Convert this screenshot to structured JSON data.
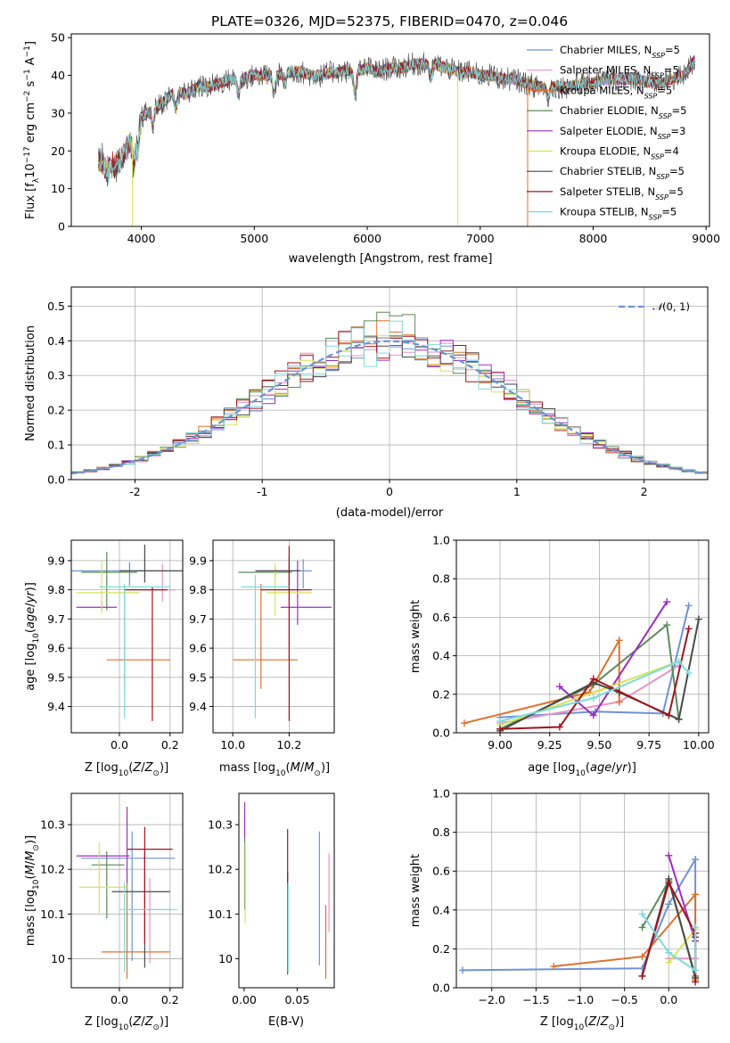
{
  "figure_title": "PLATE=0326, MJD=52375, FIBERID=0470, z=0.046",
  "colors": {
    "Chabrier MILES": "#6f92d6",
    "Salpeter MILES": "#e694c6",
    "Kroupa MILES": "#e0702a",
    "Chabrier ELODIE": "#5b8a5a",
    "Salpeter ELODIE": "#9b2ec0",
    "Kroupa ELODIE": "#d5e35b",
    "Chabrier STELIB": "#4a4a4a",
    "Salpeter STELIB": "#a0151c",
    "Kroupa STELIB": "#7fdada"
  },
  "chart_data": [
    {
      "id": "spectrum",
      "type": "line",
      "title": "PLATE=0326, MJD=52375, FIBERID=0470, z=0.046",
      "xlabel": "wavelength [Angstrom, rest frame]",
      "ylabel": "Flux [f_λ 10^-17 erg cm^-2 s^-1 A^-1]",
      "xlim": [
        3380,
        9030
      ],
      "ylim": [
        0,
        51
      ],
      "xticks": [
        4000,
        5000,
        6000,
        7000,
        8000,
        9000
      ],
      "yticks": [
        0,
        10,
        20,
        30,
        40,
        50
      ],
      "legend_position": "upper-right",
      "legend": [
        {
          "name": "Chabrier MILES",
          "nssp": "5"
        },
        {
          "name": "Salpeter MILES",
          "nssp": "5"
        },
        {
          "name": "Kroupa MILES",
          "nssp": "5"
        },
        {
          "name": "Chabrier ELODIE",
          "nssp": "5"
        },
        {
          "name": "Salpeter ELODIE",
          "nssp": "3"
        },
        {
          "name": "Kroupa ELODIE",
          "nssp": "4"
        },
        {
          "name": "Chabrier STELIB",
          "nssp": "5"
        },
        {
          "name": "Salpeter STELIB",
          "nssp": "5"
        },
        {
          "name": "Kroupa STELIB",
          "nssp": "5"
        }
      ],
      "continuum": {
        "x": [
          3620,
          3700,
          3800,
          3900,
          4000,
          4100,
          4200,
          4300,
          4400,
          4500,
          4600,
          4700,
          4800,
          4900,
          5000,
          5100,
          5200,
          5300,
          5400,
          5500,
          5600,
          5700,
          5800,
          5900,
          6000,
          6100,
          6200,
          6300,
          6400,
          6500,
          6600,
          6700,
          6800,
          6900,
          7000,
          7100,
          7200,
          7300,
          7400,
          7500,
          7600,
          7700,
          7800,
          7900,
          8000,
          8100,
          8200,
          8300,
          8400,
          8500,
          8600,
          8700,
          8800,
          8900
        ],
        "y": [
          18,
          15,
          17,
          22,
          29,
          31,
          33,
          36,
          35,
          37,
          37,
          38,
          39,
          39,
          40,
          40,
          40,
          41,
          41,
          40,
          40,
          41,
          41,
          41,
          42,
          41,
          42,
          42,
          43,
          43,
          43,
          42,
          41,
          41,
          40,
          40,
          39,
          39,
          38,
          37,
          37,
          37,
          37,
          38,
          38,
          39,
          39,
          39,
          39,
          38,
          38,
          39,
          40,
          44
        ]
      },
      "model_drops": [
        {
          "series": "Kroupa ELODIE",
          "x": 3920
        },
        {
          "series": "Kroupa ELODIE",
          "x": 6800
        },
        {
          "series": "Kroupa MILES",
          "x": 7420
        }
      ]
    },
    {
      "id": "residuals",
      "type": "histogram",
      "xlabel": "(data-model)/error",
      "ylabel": "Normed distribution",
      "xlim": [
        -2.5,
        2.5
      ],
      "ylim": [
        0,
        0.555
      ],
      "xticks": [
        -2,
        -1,
        0,
        1,
        2
      ],
      "yticks": [
        0.0,
        0.1,
        0.2,
        0.3,
        0.4,
        0.5
      ],
      "bin_width": 0.1,
      "curve_label": "N(0,1)",
      "curve_label_parts": {
        "script": "𝒩",
        "args": "(0, 1)"
      },
      "curve_color": "#6f92d6",
      "legend_position": "upper-right",
      "grid": true
    },
    {
      "id": "age-vs-Z",
      "type": "errorbar",
      "xlabel": "Z [log10(Z/Z⊙)]",
      "ylabel": "age [log10(age/yr)]",
      "xlim": [
        -0.19,
        0.25
      ],
      "ylim": [
        9.31,
        9.97
      ],
      "xticks": [
        0.0,
        0.2
      ],
      "xticklabels": [
        "0.0",
        "0.2"
      ],
      "yticks": [
        9.4,
        9.5,
        9.6,
        9.7,
        9.8,
        9.9
      ],
      "grid": true,
      "points": [
        {
          "series": "Chabrier MILES",
          "x": 0.04,
          "xerr": [
            0.26,
            0.18
          ],
          "y": 9.865,
          "yerr": [
            0.05,
            0.03
          ]
        },
        {
          "series": "Salpeter MILES",
          "x": 0.17,
          "xerr": [
            0.15,
            0.05
          ],
          "y": 9.8,
          "yerr": [
            0.04,
            0.09
          ]
        },
        {
          "series": "Kroupa MILES",
          "x": 0.02,
          "xerr": [
            0.07,
            0.18
          ],
          "y": 9.56,
          "yerr": [
            0.1,
            0.25
          ]
        },
        {
          "series": "Chabrier ELODIE",
          "x": -0.05,
          "xerr": [
            0.1,
            0.12
          ],
          "y": 9.86,
          "yerr": [
            0.13,
            0.07
          ]
        },
        {
          "series": "Salpeter ELODIE",
          "x": -0.07,
          "xerr": [
            0.1,
            0.06
          ],
          "y": 9.74,
          "yerr": [
            0.01,
            0.02
          ]
        },
        {
          "series": "Kroupa ELODIE",
          "x": -0.07,
          "xerr": [
            0.1,
            0.15
          ],
          "y": 9.79,
          "yerr": [
            0.07,
            0.11
          ]
        },
        {
          "series": "Chabrier STELIB",
          "x": 0.1,
          "xerr": [
            0.1,
            0.15
          ],
          "y": 9.865,
          "yerr": [
            0.04,
            0.09
          ]
        },
        {
          "series": "Salpeter STELIB",
          "x": 0.13,
          "xerr": [
            0.11,
            0.06
          ],
          "y": 9.8,
          "yerr": [
            0.45,
            0.01
          ]
        },
        {
          "series": "Kroupa STELIB",
          "x": 0.02,
          "xerr": [
            0.1,
            0.18
          ],
          "y": 9.81,
          "yerr": [
            0.45,
            0.01
          ]
        }
      ]
    },
    {
      "id": "age-vs-mass",
      "type": "errorbar",
      "xlabel": "mass [log10(M/M⊙)]",
      "xlim": [
        9.93,
        10.36
      ],
      "ylim": [
        9.31,
        9.97
      ],
      "xticks": [
        10.0,
        10.2
      ],
      "xticklabels": [
        "10.0",
        "10.2"
      ],
      "yticks": [
        9.4,
        9.5,
        9.6,
        9.7,
        9.8,
        9.9
      ],
      "grid": true,
      "points": [
        {
          "series": "Chabrier MILES",
          "x": 10.25,
          "xerr": [
            0.15,
            0.03
          ],
          "y": 9.865,
          "yerr": [
            0.06,
            0.04
          ]
        },
        {
          "series": "Salpeter MILES",
          "x": 10.2,
          "xerr": [
            0.05,
            0.02
          ],
          "y": 9.8,
          "yerr": [
            0.24,
            0.01
          ]
        },
        {
          "series": "Kroupa MILES",
          "x": 10.1,
          "xerr": [
            0.1,
            0.13
          ],
          "y": 9.56,
          "yerr": [
            0.1,
            0.26
          ]
        },
        {
          "series": "Chabrier ELODIE",
          "x": 10.15,
          "xerr": [
            0.13,
            0.06
          ],
          "y": 9.86,
          "yerr": [
            0.02,
            0.02
          ]
        },
        {
          "series": "Salpeter ELODIE",
          "x": 10.23,
          "xerr": [
            0.06,
            0.12
          ],
          "y": 9.74,
          "yerr": [
            0.06,
            0.16
          ]
        },
        {
          "series": "Kroupa ELODIE",
          "x": 10.15,
          "xerr": [
            0.03,
            0.13
          ],
          "y": 9.79,
          "yerr": [
            0.08,
            0.1
          ]
        },
        {
          "series": "Chabrier STELIB",
          "x": 10.2,
          "xerr": [
            0.12,
            0.04
          ],
          "y": 9.865,
          "yerr": [
            0.07,
            0.05
          ]
        },
        {
          "series": "Salpeter STELIB",
          "x": 10.2,
          "xerr": [
            0.1,
            0.08
          ],
          "y": 9.8,
          "yerr": [
            0.45,
            0.15
          ]
        },
        {
          "series": "Kroupa STELIB",
          "x": 10.08,
          "xerr": [
            0.05,
            0.12
          ],
          "y": 9.81,
          "yerr": [
            0.45,
            0.04
          ]
        }
      ]
    },
    {
      "id": "massweight-vs-age",
      "type": "line",
      "xlabel": "age [log10(age/yr)]",
      "ylabel": "mass weight",
      "xlim": [
        8.78,
        10.05
      ],
      "ylim": [
        0,
        1.0
      ],
      "xticks": [
        9.0,
        9.25,
        9.5,
        9.75,
        10.0
      ],
      "xticklabels": [
        "9.00",
        "9.25",
        "9.50",
        "9.75",
        "10.00"
      ],
      "yticks": [
        0.0,
        0.2,
        0.4,
        0.6,
        0.8,
        1.0
      ],
      "grid": true,
      "series": [
        {
          "name": "Chabrier MILES",
          "x": [
            9.0,
            9.48,
            9.82,
            9.95
          ],
          "y": [
            0.08,
            0.11,
            0.1,
            0.66
          ]
        },
        {
          "name": "Salpeter MILES",
          "x": [
            9.0,
            9.6,
            9.9
          ],
          "y": [
            0.05,
            0.16,
            0.35
          ]
        },
        {
          "name": "Kroupa MILES",
          "x": [
            8.82,
            9.45,
            9.6,
            9.6
          ],
          "y": [
            0.05,
            0.21,
            0.48,
            0.16
          ]
        },
        {
          "name": "Chabrier ELODIE",
          "x": [
            9.0,
            9.47,
            9.84,
            9.9
          ],
          "y": [
            0.02,
            0.25,
            0.56,
            0.07
          ]
        },
        {
          "name": "Salpeter ELODIE",
          "x": [
            9.3,
            9.47,
            9.84
          ],
          "y": [
            0.24,
            0.09,
            0.68
          ]
        },
        {
          "name": "Kroupa ELODIE",
          "x": [
            9.0,
            9.5,
            9.9
          ],
          "y": [
            0.04,
            0.22,
            0.37
          ]
        },
        {
          "name": "Chabrier STELIB",
          "x": [
            9.0,
            9.47,
            9.6,
            9.9,
            10.0
          ],
          "y": [
            0.01,
            0.26,
            0.21,
            0.07,
            0.59
          ]
        },
        {
          "name": "Salpeter STELIB",
          "x": [
            9.0,
            9.3,
            9.47,
            9.85,
            9.95
          ],
          "y": [
            0.02,
            0.03,
            0.28,
            0.09,
            0.54
          ]
        },
        {
          "name": "Kroupa STELIB",
          "x": [
            9.0,
            9.47,
            9.9,
            9.95
          ],
          "y": [
            0.06,
            0.18,
            0.37,
            0.31
          ]
        }
      ]
    },
    {
      "id": "mass-vs-Z",
      "type": "errorbar",
      "xlabel": "Z [log10(Z/Z⊙)]",
      "ylabel": "mass [log10(M/M⊙)]",
      "xlim": [
        -0.19,
        0.25
      ],
      "ylim": [
        9.935,
        10.37
      ],
      "xticks": [
        0.0,
        0.2
      ],
      "xticklabels": [
        "0.0",
        "0.2"
      ],
      "yticks": [
        10.0,
        10.1,
        10.2,
        10.3
      ],
      "grid": true,
      "points": [
        {
          "series": "Chabrier MILES",
          "x": 0.05,
          "xerr": [
            0.2,
            0.17
          ],
          "y": 10.225,
          "yerr": [
            0.23,
            0.06
          ]
        },
        {
          "series": "Salpeter MILES",
          "x": 0.12,
          "xerr": [
            0.08,
            0.08
          ],
          "y": 10.11,
          "yerr": [
            0.12,
            0.07
          ]
        },
        {
          "series": "Kroupa MILES",
          "x": 0.03,
          "xerr": [
            0.1,
            0.17
          ],
          "y": 10.015,
          "yerr": [
            0.06,
            0.16
          ]
        },
        {
          "series": "Chabrier ELODIE",
          "x": -0.05,
          "xerr": [
            0.06,
            0.07
          ],
          "y": 10.21,
          "yerr": [
            0.12,
            0.03
          ]
        },
        {
          "series": "Salpeter ELODIE",
          "x": 0.03,
          "xerr": [
            0.2,
            0.01
          ],
          "y": 10.23,
          "yerr": [
            0.06,
            0.11
          ]
        },
        {
          "series": "Kroupa ELODIE",
          "x": -0.08,
          "xerr": [
            0.08,
            0.11
          ],
          "y": 10.16,
          "yerr": [
            0.06,
            0.1
          ]
        },
        {
          "series": "Chabrier STELIB",
          "x": 0.1,
          "xerr": [
            0.13,
            0.1
          ],
          "y": 10.15,
          "yerr": [
            0.17,
            0.09
          ]
        },
        {
          "series": "Salpeter STELIB",
          "x": 0.1,
          "xerr": [
            0.07,
            0.11
          ],
          "y": 10.245,
          "yerr": [
            0.21,
            0.05
          ]
        },
        {
          "series": "Kroupa STELIB",
          "x": 0.02,
          "xerr": [
            0.02,
            0.21
          ],
          "y": 10.11,
          "yerr": [
            0.14,
            0.06
          ]
        }
      ]
    },
    {
      "id": "mass-vs-ebv",
      "type": "errorbar",
      "xlabel": "E(B-V)",
      "xlim": [
        -0.005,
        0.085
      ],
      "ylim": [
        9.935,
        10.37
      ],
      "xticks": [
        0.0,
        0.05
      ],
      "xticklabels": [
        "0.00",
        "0.05"
      ],
      "yticks": [
        10.0,
        10.1,
        10.2,
        10.3
      ],
      "grid": false,
      "points": [
        {
          "series": "Chabrier MILES",
          "x": 0.071,
          "y": 10.125,
          "yerr": [
            0.14,
            0.16
          ]
        },
        {
          "series": "Salpeter MILES",
          "x": 0.08,
          "y": 10.15,
          "yerr": [
            0.09,
            0.085
          ]
        },
        {
          "series": "Kroupa MILES",
          "x": 0.077,
          "y": 10.035,
          "yerr": [
            0.08,
            0.085
          ]
        },
        {
          "series": "Chabrier ELODIE",
          "x": 0.0005,
          "y": 10.23,
          "yerr": [
            0.12,
            0.04
          ]
        },
        {
          "series": "Salpeter ELODIE",
          "x": 0.0005,
          "y": 10.31,
          "yerr": [
            0.04,
            0.04
          ]
        },
        {
          "series": "Kroupa ELODIE",
          "x": 0.001,
          "y": 10.18,
          "yerr": [
            0.1,
            0.08
          ]
        },
        {
          "series": "Chabrier STELIB",
          "x": 0.041,
          "y": 10.175,
          "yerr": [
            0.21,
            0.02
          ]
        },
        {
          "series": "Salpeter STELIB",
          "x": 0.041,
          "y": 10.23,
          "yerr": [
            0.06,
            0.06
          ]
        },
        {
          "series": "Kroupa STELIB",
          "x": 0.0415,
          "y": 10.07,
          "yerr": [
            0.1,
            0.1
          ]
        }
      ]
    },
    {
      "id": "massweight-vs-Z",
      "type": "line",
      "xlabel": "Z [log10(Z/Z⊙)]",
      "ylabel": "mass weight",
      "xlim": [
        -2.4,
        0.45
      ],
      "ylim": [
        0,
        1.0
      ],
      "xticks": [
        -2.0,
        -1.5,
        -1.0,
        -0.5,
        0.0
      ],
      "xticklabels": [
        "−2.0",
        "−1.5",
        "−1.0",
        "−0.5",
        "0.0"
      ],
      "yticks": [
        0.0,
        0.2,
        0.4,
        0.6,
        0.8,
        1.0
      ],
      "grid": true,
      "series": [
        {
          "name": "Chabrier MILES",
          "x": [
            -2.33,
            -0.3,
            0.0,
            0.3,
            0.3
          ],
          "y": [
            0.09,
            0.1,
            0.43,
            0.66,
            0.05
          ]
        },
        {
          "name": "Salpeter MILES",
          "x": [
            0.0,
            0.3
          ],
          "y": [
            0.15,
            0.15
          ]
        },
        {
          "name": "Kroupa MILES",
          "x": [
            -1.3,
            -0.3,
            0.3,
            0.3
          ],
          "y": [
            0.11,
            0.16,
            0.48,
            0.04
          ]
        },
        {
          "name": "Chabrier ELODIE",
          "x": [
            -0.3,
            0.0,
            0.3
          ],
          "y": [
            0.31,
            0.55,
            0.06
          ]
        },
        {
          "name": "Salpeter ELODIE",
          "x": [
            0.0,
            0.3
          ],
          "y": [
            0.68,
            0.24
          ]
        },
        {
          "name": "Kroupa ELODIE",
          "x": [
            0.0,
            0.3
          ],
          "y": [
            0.13,
            0.3
          ]
        },
        {
          "name": "Chabrier STELIB",
          "x": [
            -0.3,
            0.0,
            0.3,
            0.3
          ],
          "y": [
            0.06,
            0.56,
            0.05,
            0.26
          ]
        },
        {
          "name": "Salpeter STELIB",
          "x": [
            -0.3,
            0.0,
            0.3,
            0.3
          ],
          "y": [
            0.06,
            0.54,
            0.28,
            0.03
          ]
        },
        {
          "name": "Kroupa STELIB",
          "x": [
            -0.3,
            0.0,
            0.3,
            0.3
          ],
          "y": [
            0.38,
            0.18,
            0.09,
            0.31
          ]
        }
      ]
    }
  ]
}
